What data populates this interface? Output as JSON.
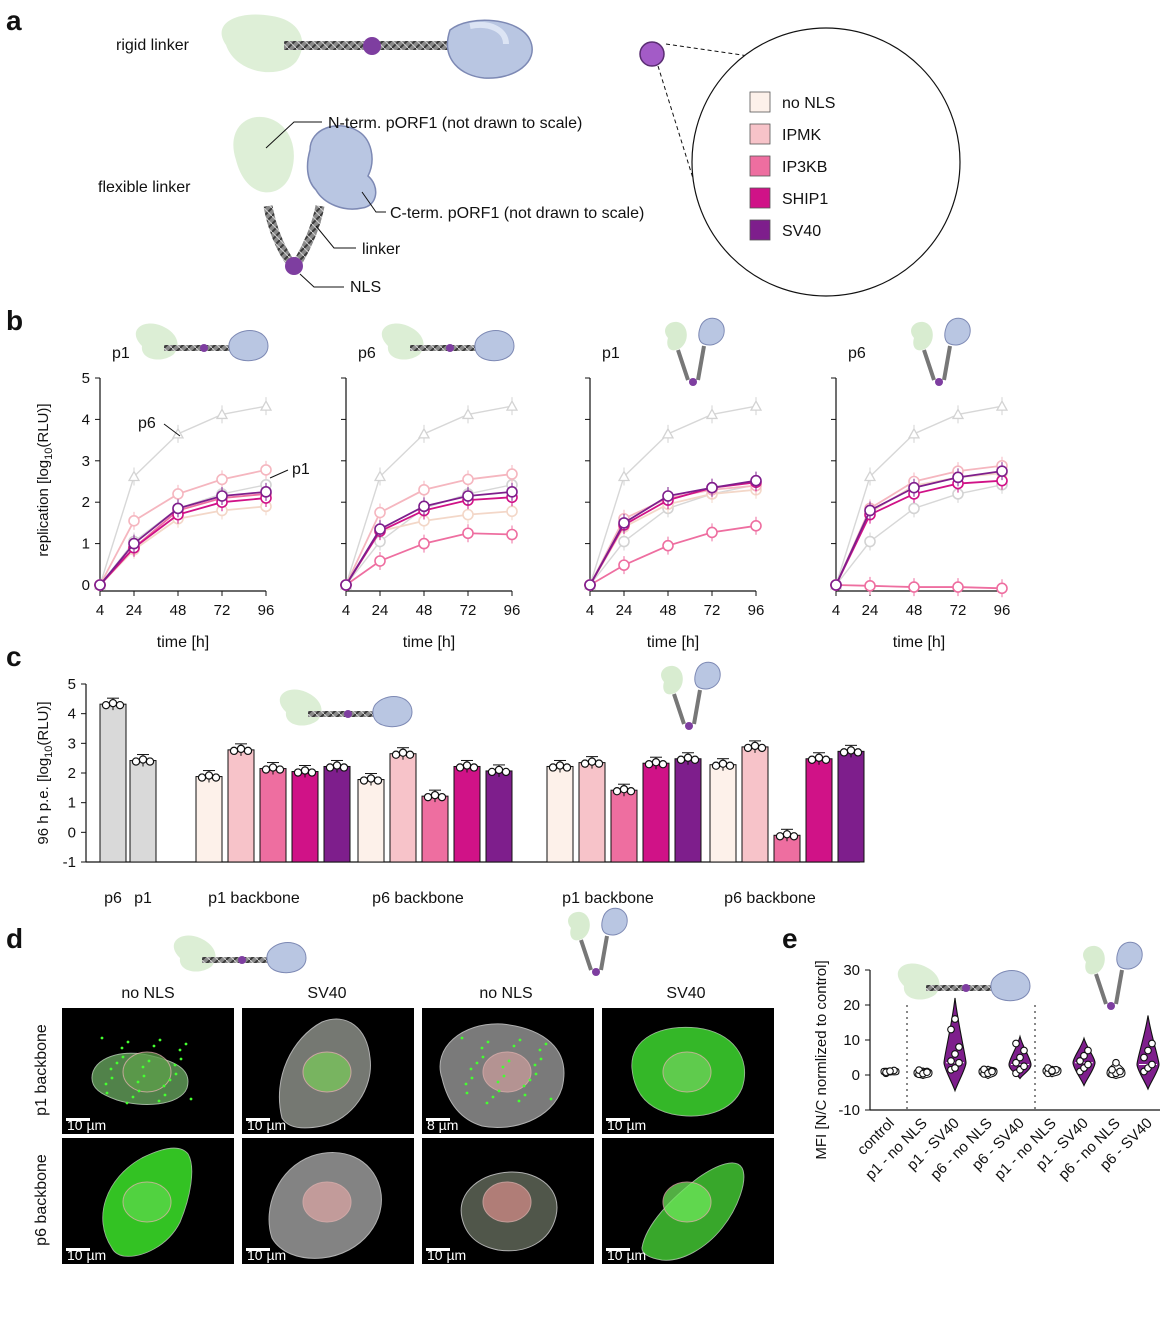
{
  "panels": {
    "a": {
      "letter": "a",
      "rigid_label": "rigid linker",
      "flexible_label": "flexible linker",
      "nterm_label": "N-term. pORF1 (not drawn to scale)",
      "cterm_label": "C-term. pORF1 (not drawn to scale)",
      "linker_label": "linker",
      "nls_label": "NLS",
      "legend": [
        {
          "label": "no NLS",
          "color": "#fdf1ea"
        },
        {
          "label": "IPMK",
          "color": "#f7c3c9"
        },
        {
          "label": "IP3KB",
          "color": "#ee6ea0"
        },
        {
          "label": "SHIP1",
          "color": "#d01287"
        },
        {
          "label": "SV40",
          "color": "#7e1e8c"
        }
      ]
    },
    "b": {
      "letter": "b"
    },
    "c": {
      "letter": "c"
    },
    "d": {
      "letter": "d",
      "col_labels": [
        "no NLS",
        "SV40",
        "no NLS",
        "SV40"
      ],
      "row_labels": [
        "p1 backbone",
        "p6 backbone"
      ],
      "scale_bars": [
        "10 µm",
        "10 µm",
        "8 µm",
        "10 µm",
        "10 µm",
        "10 µm",
        "10 µm",
        "10 µm"
      ]
    },
    "e": {
      "letter": "e"
    }
  },
  "colors": {
    "no_nls": "#fdf1ea",
    "ipmk": "#f7c3c9",
    "ip3kb": "#ee6ea0",
    "ship1": "#d01287",
    "sv40": "#7e1e8c",
    "control_grey": "#d9d9d9",
    "wt_line": "#d3d3d3"
  },
  "chart_data": [
    {
      "type": "line",
      "panel": "b",
      "subplot_title": "p1",
      "ylabel": "replication [log10(RLU)]",
      "xlabel": "time [h]",
      "x": [
        4,
        24,
        48,
        72,
        96
      ],
      "xticks": [
        "4",
        "24",
        "48",
        "72",
        "96"
      ],
      "ylim": [
        0,
        5
      ],
      "yticks": [
        "0",
        "1",
        "2",
        "3",
        "4",
        "5"
      ],
      "annotations": [
        "p6",
        "p1"
      ],
      "series": [
        {
          "name": "p6",
          "values": [
            0,
            2.62,
            3.65,
            4.12,
            4.32
          ]
        },
        {
          "name": "p1",
          "values": [
            0,
            1.05,
            1.85,
            2.2,
            2.42
          ]
        },
        {
          "name": "no NLS",
          "values": [
            0,
            0.85,
            1.6,
            1.8,
            1.9
          ]
        },
        {
          "name": "IPMK",
          "values": [
            0,
            1.55,
            2.2,
            2.55,
            2.78
          ]
        },
        {
          "name": "IP3KB",
          "values": [
            0,
            0.9,
            1.8,
            2.1,
            2.2
          ]
        },
        {
          "name": "SHIP1",
          "values": [
            0,
            0.9,
            1.7,
            2.0,
            2.1
          ]
        },
        {
          "name": "SV40",
          "values": [
            0,
            1.0,
            1.85,
            2.15,
            2.25
          ]
        }
      ]
    },
    {
      "type": "line",
      "panel": "b",
      "subplot_title": "p6",
      "xlabel": "time [h]",
      "x": [
        4,
        24,
        48,
        72,
        96
      ],
      "xticks": [
        "4",
        "24",
        "48",
        "72",
        "96"
      ],
      "ylim": [
        0,
        5
      ],
      "series": [
        {
          "name": "p6",
          "values": [
            0,
            2.62,
            3.65,
            4.12,
            4.32
          ]
        },
        {
          "name": "p1",
          "values": [
            0,
            1.05,
            1.85,
            2.2,
            2.42
          ]
        },
        {
          "name": "no NLS",
          "values": [
            0,
            1.3,
            1.55,
            1.7,
            1.78
          ]
        },
        {
          "name": "IPMK",
          "values": [
            0,
            1.75,
            2.3,
            2.55,
            2.68
          ]
        },
        {
          "name": "IP3KB",
          "values": [
            0,
            0.58,
            1.0,
            1.25,
            1.22
          ]
        },
        {
          "name": "SHIP1",
          "values": [
            0,
            1.3,
            1.8,
            2.05,
            2.12
          ]
        },
        {
          "name": "SV40",
          "values": [
            0,
            1.35,
            1.9,
            2.15,
            2.25
          ]
        }
      ]
    },
    {
      "type": "line",
      "panel": "b",
      "subplot_title": "p1",
      "xlabel": "time [h]",
      "x": [
        4,
        24,
        48,
        72,
        96
      ],
      "xticks": [
        "4",
        "24",
        "48",
        "72",
        "96"
      ],
      "ylim": [
        0,
        5
      ],
      "series": [
        {
          "name": "p6",
          "values": [
            0,
            2.62,
            3.65,
            4.12,
            4.32
          ]
        },
        {
          "name": "p1",
          "values": [
            0,
            1.05,
            1.85,
            2.2,
            2.42
          ]
        },
        {
          "name": "no NLS",
          "values": [
            0,
            1.4,
            1.95,
            2.2,
            2.3
          ]
        },
        {
          "name": "IPMK",
          "values": [
            0,
            1.6,
            2.1,
            2.3,
            2.4
          ]
        },
        {
          "name": "IP3KB",
          "values": [
            0,
            0.48,
            0.95,
            1.27,
            1.43
          ]
        },
        {
          "name": "SHIP1",
          "values": [
            0,
            1.45,
            2.05,
            2.35,
            2.48
          ]
        },
        {
          "name": "SV40",
          "values": [
            0,
            1.5,
            2.15,
            2.35,
            2.52
          ]
        }
      ]
    },
    {
      "type": "line",
      "panel": "b",
      "subplot_title": "p6",
      "xlabel": "time [h]",
      "x": [
        4,
        24,
        48,
        72,
        96
      ],
      "xticks": [
        "4",
        "24",
        "48",
        "72",
        "96"
      ],
      "ylim": [
        0,
        5
      ],
      "series": [
        {
          "name": "p6",
          "values": [
            0,
            2.62,
            3.65,
            4.12,
            4.32
          ]
        },
        {
          "name": "p1",
          "values": [
            0,
            1.05,
            1.85,
            2.2,
            2.42
          ]
        },
        {
          "name": "no NLS",
          "values": [
            0,
            1.75,
            2.4,
            2.6,
            2.7
          ]
        },
        {
          "name": "IPMK",
          "values": [
            0,
            1.85,
            2.5,
            2.75,
            2.88
          ]
        },
        {
          "name": "IP3KB",
          "values": [
            0,
            -0.02,
            -0.05,
            -0.05,
            -0.08
          ]
        },
        {
          "name": "SHIP1",
          "values": [
            0,
            1.7,
            2.2,
            2.45,
            2.52
          ]
        },
        {
          "name": "SV40",
          "values": [
            0,
            1.8,
            2.35,
            2.6,
            2.75
          ]
        }
      ]
    },
    {
      "type": "bar",
      "panel": "c",
      "ylabel": "96 h p.e. [log10(RLU)]",
      "ylim": [
        -1,
        5
      ],
      "yticks": [
        "-1",
        "0",
        "1",
        "2",
        "3",
        "4",
        "5"
      ],
      "group_labels": [
        "p6",
        "p1",
        "p1 backbone",
        "p6 backbone",
        "p1 backbone",
        "p6 backbone"
      ],
      "categories": [
        "p6",
        "p1",
        "rigid p1 no NLS",
        "rigid p1 IPMK",
        "rigid p1 IP3KB",
        "rigid p1 SHIP1",
        "rigid p1 SV40",
        "rigid p6 no NLS",
        "rigid p6 IPMK",
        "rigid p6 IP3KB",
        "rigid p6 SHIP1",
        "rigid p6 SV40",
        "flexible p1 no NLS",
        "flexible p1 IPMK",
        "flexible p1 IP3KB",
        "flexible p1 SHIP1",
        "flexible p1 SV40",
        "flexible p6 no NLS",
        "flexible p6 IPMK",
        "flexible p6 IP3KB",
        "flexible p6 SHIP1",
        "flexible p6 SV40"
      ],
      "values": [
        4.32,
        2.42,
        1.88,
        2.78,
        2.15,
        2.05,
        2.22,
        1.78,
        2.65,
        1.22,
        2.22,
        2.07,
        2.22,
        2.35,
        1.42,
        2.33,
        2.48,
        2.28,
        2.88,
        -0.1,
        2.48,
        2.73
      ]
    },
    {
      "type": "violin",
      "panel": "e",
      "ylabel": "MFI [N/C normalized to control]",
      "ylim": [
        -10,
        30
      ],
      "yticks": [
        "-10",
        "0",
        "10",
        "20",
        "30"
      ],
      "categories": [
        "control",
        "p1 - no NLS",
        "p1 - SV40",
        "p6 - no NLS",
        "p6 - SV40",
        "p1 - no NLS",
        "p1 - SV40",
        "p6 - no NLS",
        "p6 - SV40"
      ],
      "medians": [
        1.0,
        0.6,
        3.5,
        1.0,
        3.0,
        1.2,
        3.5,
        0.6,
        3.0
      ],
      "ranges": [
        [
          0,
          2
        ],
        [
          -1,
          2
        ],
        [
          -4.5,
          22
        ],
        [
          -1,
          2.5
        ],
        [
          -1,
          11
        ],
        [
          -0.5,
          2.5
        ],
        [
          -3,
          10.5
        ],
        [
          -1,
          4
        ],
        [
          -4,
          17
        ]
      ],
      "points": [
        [
          0.5,
          1.0,
          1.3,
          0.8,
          1.1
        ],
        [
          0.2,
          0.6,
          1.0,
          1.4,
          0.4,
          0.8
        ],
        [
          1.5,
          2.0,
          3.5,
          4.0,
          6.0,
          8.0,
          13.0,
          16.0
        ],
        [
          0.3,
          0.8,
          1.2,
          1.6,
          0.5,
          1.0
        ],
        [
          0.5,
          1.5,
          2.5,
          3.5,
          5.0,
          7.0,
          9.0
        ],
        [
          0.5,
          1.0,
          1.5,
          2.0,
          1.2
        ],
        [
          1.0,
          2.0,
          3.0,
          4.0,
          5.5,
          7.0
        ],
        [
          0.2,
          0.5,
          1.0,
          1.5,
          3.5
        ],
        [
          1.0,
          2.0,
          3.0,
          5.0,
          7.0,
          9.0
        ]
      ]
    }
  ]
}
